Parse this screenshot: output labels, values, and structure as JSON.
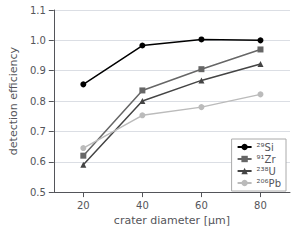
{
  "chart_data": {
    "type": "line",
    "x": [
      20,
      40,
      60,
      80
    ],
    "series": [
      {
        "name": "²⁹Si",
        "color": "#000000",
        "marker": "circle",
        "values": [
          0.855,
          0.983,
          1.003,
          1.0
        ]
      },
      {
        "name": "⁹¹Zr",
        "color": "#666666",
        "marker": "square",
        "values": [
          0.62,
          0.835,
          0.905,
          0.97
        ]
      },
      {
        "name": "²³⁸U",
        "color": "#444444",
        "marker": "triangle",
        "values": [
          0.59,
          0.8,
          0.868,
          0.922
        ]
      },
      {
        "name": "²⁰⁶Pb",
        "color": "#bbbbbb",
        "marker": "circle",
        "values": [
          0.645,
          0.753,
          0.78,
          0.822
        ]
      }
    ],
    "xlabel": "crater diameter [μm]",
    "ylabel": "detection efficiency",
    "xlim": [
      10,
      90
    ],
    "ylim": [
      0.5,
      1.1
    ],
    "xticks": [
      20,
      40,
      60,
      80
    ],
    "yticks": [
      0.5,
      0.6,
      0.7,
      0.8,
      0.9,
      {
        "value": 1.0,
        "label": "1.0"
      },
      1.1
    ],
    "grid": true,
    "legend": "lower right"
  }
}
